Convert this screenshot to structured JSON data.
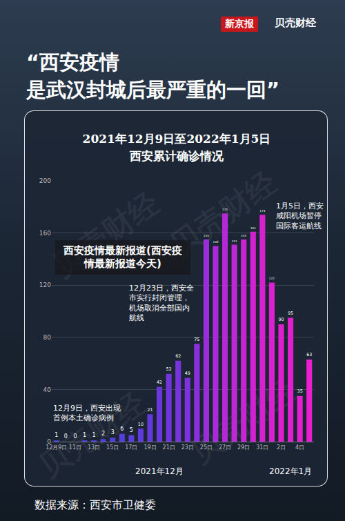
{
  "header": {
    "logos": [
      "新京报",
      "贝壳财经"
    ],
    "headline": [
      "“西安疫情",
      "是武汉封城后最严重的一回”"
    ]
  },
  "banner": "西安疫情最新报道(西安疫情最新报道今天)",
  "watermark": "贝壳财经",
  "source": "数据来源：西安市卫健委",
  "chart_data": {
    "type": "bar",
    "title": "2021年12月9日至2022年1月5日",
    "subtitle": "西安累计确诊情况",
    "categories": [
      "12月9日",
      null,
      "11日",
      null,
      "13日",
      null,
      "15日",
      null,
      "17日",
      null,
      "19日",
      null,
      "21日",
      null,
      "23日",
      null,
      "25日",
      null,
      "27日",
      null,
      "29日",
      null,
      "31日",
      null,
      "2日",
      null,
      "4日",
      null
    ],
    "values": [
      1,
      0,
      0,
      1,
      1,
      2,
      3,
      6,
      5,
      10,
      21,
      42,
      52,
      62,
      49,
      75,
      155,
      150,
      175,
      151,
      155,
      161,
      174,
      122,
      90,
      95,
      35,
      63
    ],
    "colors": [
      "#3f45d9",
      "#4244d9",
      "#4543d9",
      "#4842d9",
      "#4b41da",
      "#4e40da",
      "#523fda",
      "#563edb",
      "#5a3ddb",
      "#5f3bdc",
      "#6439dc",
      "#6a37dc",
      "#7135dd",
      "#7833dd",
      "#7f31dd",
      "#8a2fdc",
      "#9a2cda",
      "#a82ad8",
      "#b428d6",
      "#bf26d4",
      "#c824d2",
      "#d022d0",
      "#d621cf",
      "#db20ce",
      "#df1fce",
      "#e21fce",
      "#e51ecf",
      "#e81ecf"
    ],
    "ylim": [
      0,
      200
    ],
    "yticks": [
      0,
      40,
      80,
      120,
      160,
      200
    ],
    "grid": true,
    "data_labels": true,
    "month_labels": [
      "2021年12月",
      "2022年1月"
    ],
    "annotations": [
      {
        "lines": [
          "12月9日，西安出现",
          "首例本土确诊病例"
        ]
      },
      {
        "lines": [
          "12月23日，西安全",
          "市实行封闭管理，",
          "机场取消全部国内",
          "航线"
        ]
      },
      {
        "lines": [
          "1月5日，西安",
          "咸阳机场暂停",
          "国际客运航线"
        ]
      }
    ]
  }
}
